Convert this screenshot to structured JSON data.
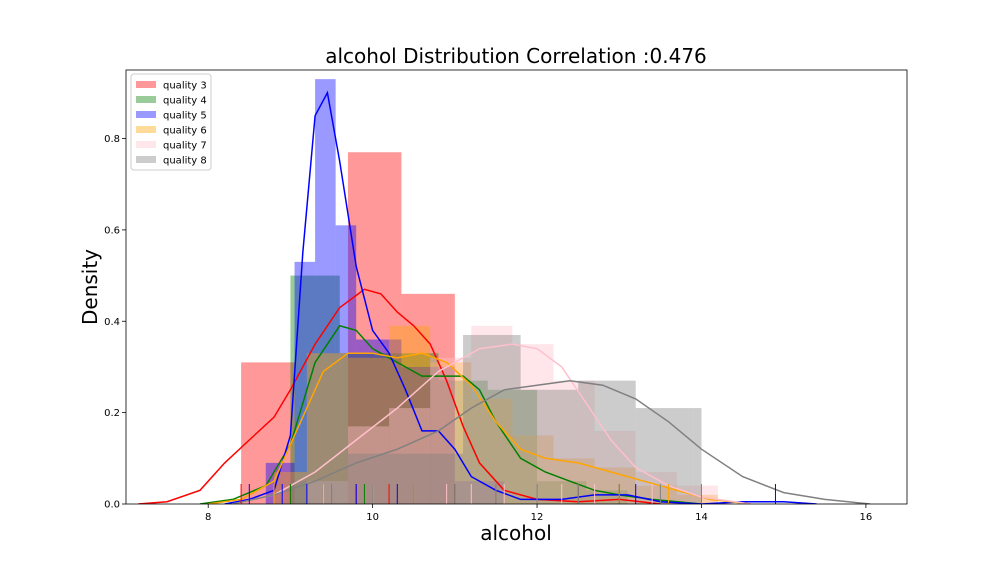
{
  "chart_data": {
    "type": "histogram+kde",
    "title": "alcohol Distribution Correlation :0.476",
    "xlabel": "alcohol",
    "ylabel": "Density",
    "xlim": [
      7.0,
      16.5
    ],
    "ylim": [
      0.0,
      0.95
    ],
    "x_ticks": [
      8,
      10,
      12,
      14,
      16
    ],
    "y_ticks": [
      0.0,
      0.2,
      0.4,
      0.6,
      0.8
    ],
    "y_tick_labels": [
      "0.0",
      "0.2",
      "0.4",
      "0.6",
      "0.8"
    ],
    "legend_position": "top-left",
    "series": [
      {
        "name": "quality 3",
        "color": "#ff0000",
        "hist": [
          {
            "x0": 8.4,
            "x1": 9.05,
            "y": 0.31
          },
          {
            "x0": 9.05,
            "x1": 9.7,
            "y": 0.0
          },
          {
            "x0": 9.7,
            "x1": 10.35,
            "y": 0.77
          },
          {
            "x0": 10.35,
            "x1": 11.0,
            "y": 0.46
          },
          {
            "x0": 11.0,
            "x1": 11.65,
            "y": 0.0
          },
          {
            "x0": 11.65,
            "x1": 12.3,
            "y": 0.0
          },
          {
            "x0": 12.3,
            "x1": 12.95,
            "y": 0.0
          }
        ],
        "kde": [
          [
            7.15,
            0.0
          ],
          [
            7.5,
            0.005
          ],
          [
            7.9,
            0.03
          ],
          [
            8.2,
            0.09
          ],
          [
            8.5,
            0.14
          ],
          [
            8.8,
            0.19
          ],
          [
            9.0,
            0.25
          ],
          [
            9.3,
            0.35
          ],
          [
            9.6,
            0.43
          ],
          [
            9.9,
            0.47
          ],
          [
            10.1,
            0.46
          ],
          [
            10.3,
            0.42
          ],
          [
            10.5,
            0.39
          ],
          [
            10.7,
            0.35
          ],
          [
            10.9,
            0.27
          ],
          [
            11.1,
            0.17
          ],
          [
            11.3,
            0.09
          ],
          [
            11.6,
            0.03
          ],
          [
            12.0,
            0.01
          ],
          [
            12.5,
            0.005
          ],
          [
            13.0,
            0.01
          ],
          [
            13.5,
            0.0
          ]
        ],
        "rug": [
          8.4,
          9.0,
          9.4,
          9.8,
          10.2,
          11.0
        ]
      },
      {
        "name": "quality 4",
        "color": "#008000",
        "hist": [
          {
            "x0": 9.0,
            "x1": 9.6,
            "y": 0.5
          },
          {
            "x0": 9.6,
            "x1": 10.2,
            "y": 0.33
          },
          {
            "x0": 10.2,
            "x1": 10.8,
            "y": 0.33
          },
          {
            "x0": 10.8,
            "x1": 11.4,
            "y": 0.27
          },
          {
            "x0": 11.4,
            "x1": 12.0,
            "y": 0.25
          },
          {
            "x0": 12.0,
            "x1": 12.6,
            "y": 0.05
          },
          {
            "x0": 12.6,
            "x1": 13.1,
            "y": 0.03
          }
        ],
        "kde": [
          [
            7.9,
            0.0
          ],
          [
            8.3,
            0.01
          ],
          [
            8.7,
            0.04
          ],
          [
            9.0,
            0.13
          ],
          [
            9.3,
            0.31
          ],
          [
            9.6,
            0.39
          ],
          [
            9.8,
            0.38
          ],
          [
            10.0,
            0.34
          ],
          [
            10.3,
            0.31
          ],
          [
            10.6,
            0.28
          ],
          [
            10.9,
            0.28
          ],
          [
            11.1,
            0.28
          ],
          [
            11.3,
            0.25
          ],
          [
            11.5,
            0.18
          ],
          [
            11.8,
            0.1
          ],
          [
            12.1,
            0.07
          ],
          [
            12.4,
            0.05
          ],
          [
            12.7,
            0.03
          ],
          [
            13.0,
            0.02
          ],
          [
            13.4,
            0.01
          ],
          [
            14.0,
            0.0
          ]
        ],
        "rug": [
          9.0,
          9.4,
          9.9,
          10.5,
          11.0,
          11.5,
          12.0,
          12.5,
          13.0
        ]
      },
      {
        "name": "quality 5",
        "color": "#0000ff",
        "hist": [
          {
            "x0": 8.7,
            "x1": 9.05,
            "y": 0.09
          },
          {
            "x0": 9.05,
            "x1": 9.3,
            "y": 0.53
          },
          {
            "x0": 9.3,
            "x1": 9.55,
            "y": 0.93
          },
          {
            "x0": 9.55,
            "x1": 9.8,
            "y": 0.61
          },
          {
            "x0": 9.8,
            "x1": 10.35,
            "y": 0.36
          },
          {
            "x0": 10.35,
            "x1": 11.0,
            "y": 0.3
          },
          {
            "x0": 11.0,
            "x1": 11.6,
            "y": 0.05
          }
        ],
        "kde": [
          [
            8.2,
            0.0
          ],
          [
            8.5,
            0.01
          ],
          [
            8.8,
            0.03
          ],
          [
            9.0,
            0.15
          ],
          [
            9.15,
            0.55
          ],
          [
            9.3,
            0.85
          ],
          [
            9.45,
            0.9
          ],
          [
            9.6,
            0.75
          ],
          [
            9.8,
            0.52
          ],
          [
            10.0,
            0.38
          ],
          [
            10.2,
            0.33
          ],
          [
            10.4,
            0.25
          ],
          [
            10.6,
            0.16
          ],
          [
            10.8,
            0.16
          ],
          [
            11.0,
            0.12
          ],
          [
            11.2,
            0.06
          ],
          [
            11.5,
            0.03
          ],
          [
            11.8,
            0.01
          ],
          [
            12.3,
            0.01
          ],
          [
            12.7,
            0.02
          ],
          [
            13.1,
            0.02
          ],
          [
            13.5,
            0.005
          ],
          [
            14.0,
            0.0
          ],
          [
            14.5,
            0.005
          ],
          [
            15.0,
            0.005
          ],
          [
            15.4,
            0.0
          ]
        ],
        "rug": [
          8.5,
          8.9,
          9.2,
          9.5,
          9.8,
          10.3,
          11.0,
          12.5,
          13.2,
          14.9
        ]
      },
      {
        "name": "quality 6",
        "color": "#ffa500",
        "hist": [
          {
            "x0": 8.8,
            "x1": 9.2,
            "y": 0.07
          },
          {
            "x0": 9.2,
            "x1": 9.7,
            "y": 0.33
          },
          {
            "x0": 9.7,
            "x1": 10.2,
            "y": 0.32
          },
          {
            "x0": 10.2,
            "x1": 10.7,
            "y": 0.39
          },
          {
            "x0": 10.7,
            "x1": 11.2,
            "y": 0.31
          },
          {
            "x0": 11.2,
            "x1": 11.7,
            "y": 0.23
          },
          {
            "x0": 11.7,
            "x1": 12.2,
            "y": 0.15
          },
          {
            "x0": 12.2,
            "x1": 12.7,
            "y": 0.1
          },
          {
            "x0": 12.7,
            "x1": 13.2,
            "y": 0.08
          },
          {
            "x0": 13.2,
            "x1": 13.7,
            "y": 0.04
          },
          {
            "x0": 13.7,
            "x1": 14.2,
            "y": 0.02
          }
        ],
        "kde": [
          [
            8.0,
            0.0
          ],
          [
            8.4,
            0.01
          ],
          [
            8.8,
            0.05
          ],
          [
            9.1,
            0.17
          ],
          [
            9.4,
            0.29
          ],
          [
            9.7,
            0.33
          ],
          [
            10.0,
            0.33
          ],
          [
            10.3,
            0.32
          ],
          [
            10.6,
            0.33
          ],
          [
            10.9,
            0.31
          ],
          [
            11.2,
            0.26
          ],
          [
            11.5,
            0.18
          ],
          [
            11.8,
            0.12
          ],
          [
            12.1,
            0.1
          ],
          [
            12.5,
            0.09
          ],
          [
            12.9,
            0.07
          ],
          [
            13.3,
            0.05
          ],
          [
            13.7,
            0.03
          ],
          [
            14.1,
            0.01
          ],
          [
            14.6,
            0.0
          ]
        ],
        "rug": [
          8.8,
          9.5,
          10.0,
          10.5,
          11.0,
          11.5,
          12.0,
          12.5,
          13.0,
          13.6
        ]
      },
      {
        "name": "quality 7",
        "color": "#ffc0cb",
        "hist": [
          {
            "x0": 9.2,
            "x1": 9.7,
            "y": 0.05
          },
          {
            "x0": 9.7,
            "x1": 10.2,
            "y": 0.17
          },
          {
            "x0": 10.2,
            "x1": 10.7,
            "y": 0.21
          },
          {
            "x0": 10.7,
            "x1": 11.2,
            "y": 0.32
          },
          {
            "x0": 11.2,
            "x1": 11.7,
            "y": 0.39
          },
          {
            "x0": 11.7,
            "x1": 12.2,
            "y": 0.35
          },
          {
            "x0": 12.2,
            "x1": 12.7,
            "y": 0.27
          },
          {
            "x0": 12.7,
            "x1": 13.2,
            "y": 0.16
          },
          {
            "x0": 13.2,
            "x1": 13.7,
            "y": 0.07
          },
          {
            "x0": 13.7,
            "x1": 14.2,
            "y": 0.04
          }
        ],
        "kde": [
          [
            8.3,
            0.0
          ],
          [
            8.8,
            0.02
          ],
          [
            9.3,
            0.07
          ],
          [
            9.8,
            0.14
          ],
          [
            10.3,
            0.21
          ],
          [
            10.8,
            0.29
          ],
          [
            11.3,
            0.34
          ],
          [
            11.7,
            0.35
          ],
          [
            12.0,
            0.34
          ],
          [
            12.3,
            0.3
          ],
          [
            12.6,
            0.22
          ],
          [
            12.9,
            0.14
          ],
          [
            13.2,
            0.08
          ],
          [
            13.6,
            0.04
          ],
          [
            14.0,
            0.015
          ],
          [
            14.6,
            0.0
          ]
        ],
        "rug": [
          9.4,
          10.0,
          10.5,
          10.9,
          11.2,
          11.6,
          12.0,
          12.3,
          12.7,
          13.4
        ]
      },
      {
        "name": "quality 8",
        "color": "#808080",
        "hist": [
          {
            "x0": 9.0,
            "x1": 9.7,
            "y": 0.05
          },
          {
            "x0": 9.7,
            "x1": 10.4,
            "y": 0.11
          },
          {
            "x0": 10.4,
            "x1": 11.1,
            "y": 0.11
          },
          {
            "x0": 11.1,
            "x1": 11.8,
            "y": 0.37
          },
          {
            "x0": 11.8,
            "x1": 12.5,
            "y": 0.25
          },
          {
            "x0": 12.5,
            "x1": 13.2,
            "y": 0.27
          },
          {
            "x0": 13.2,
            "x1": 13.9,
            "y": 0.21
          },
          {
            "x0": 13.9,
            "x1": 14.0,
            "y": 0.21
          }
        ],
        "kde": [
          [
            8.3,
            0.0
          ],
          [
            8.8,
            0.02
          ],
          [
            9.3,
            0.05
          ],
          [
            9.8,
            0.09
          ],
          [
            10.3,
            0.12
          ],
          [
            10.8,
            0.16
          ],
          [
            11.2,
            0.21
          ],
          [
            11.6,
            0.25
          ],
          [
            12.0,
            0.26
          ],
          [
            12.4,
            0.27
          ],
          [
            12.8,
            0.26
          ],
          [
            13.2,
            0.23
          ],
          [
            13.6,
            0.18
          ],
          [
            14.0,
            0.12
          ],
          [
            14.5,
            0.06
          ],
          [
            15.0,
            0.025
          ],
          [
            15.5,
            0.01
          ],
          [
            16.05,
            0.0
          ]
        ],
        "rug": [
          9.5,
          10.0,
          10.5,
          11.0,
          11.5,
          12.0,
          12.5,
          13.0,
          13.5,
          14.0
        ]
      }
    ]
  }
}
